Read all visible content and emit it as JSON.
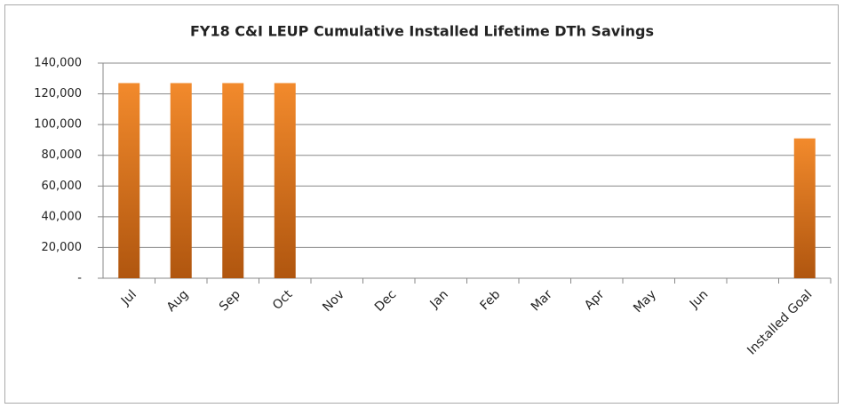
{
  "chart_data": {
    "type": "bar",
    "title": "FY18 C&I LEUP Cumulative Installed Lifetime DTh Savings",
    "categories": [
      "Jul",
      "Aug",
      "Sep",
      "Oct",
      "Nov",
      "Dec",
      "Jan",
      "Feb",
      "Mar",
      "Apr",
      "May",
      "Jun",
      null,
      "Installed Goal"
    ],
    "values": [
      127000,
      127000,
      127000,
      127000,
      null,
      null,
      null,
      null,
      null,
      null,
      null,
      null,
      null,
      91000
    ],
    "color": "#f28a2c",
    "ylim": [
      0,
      140000
    ],
    "yticks": [
      {
        "value": 0,
        "label": "-"
      },
      {
        "value": 20000,
        "label": "20,000"
      },
      {
        "value": 40000,
        "label": "40,000"
      },
      {
        "value": 60000,
        "label": "60,000"
      },
      {
        "value": 80000,
        "label": "80,000"
      },
      {
        "value": 100000,
        "label": "100,000"
      },
      {
        "value": 120000,
        "label": "120,000"
      },
      {
        "value": 140000,
        "label": "140,000"
      }
    ],
    "grid": true
  }
}
